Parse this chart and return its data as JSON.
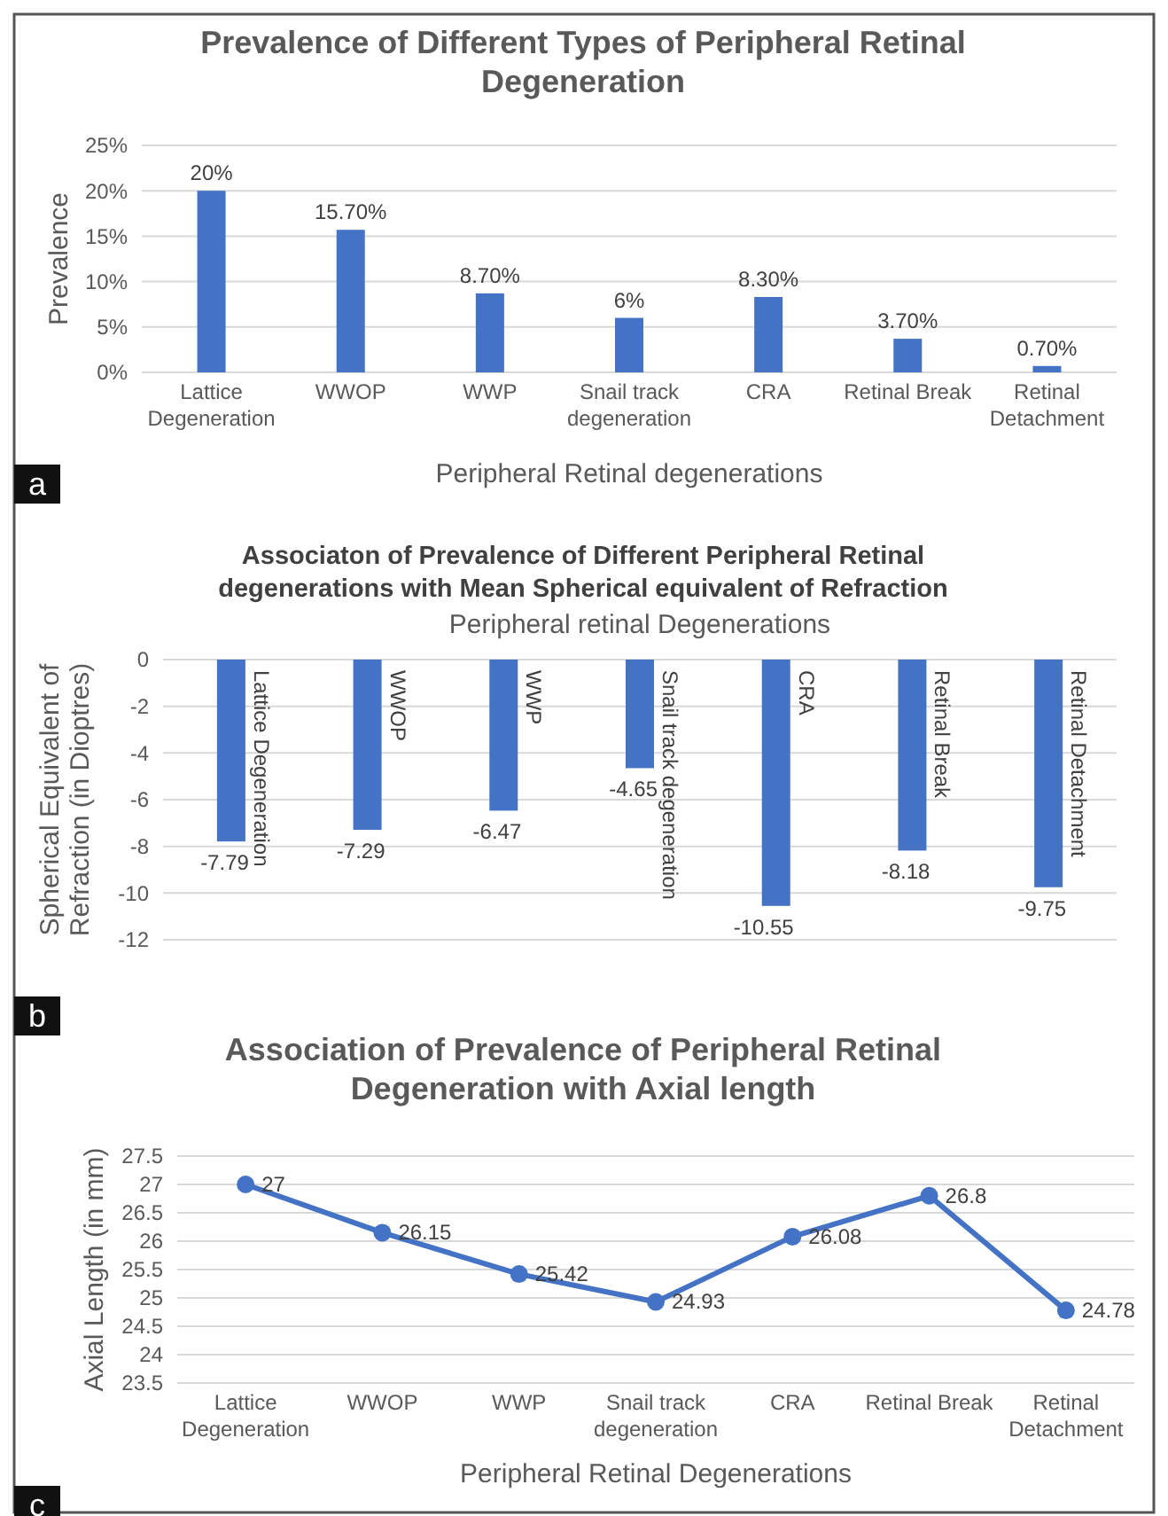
{
  "chart_data": [
    {
      "type": "bar",
      "title": "Prevalence of Different Types of Peripheral Retinal Degeneration",
      "xlabel": "Peripheral Retinal degenerations",
      "ylabel": "Prevalence",
      "categories": [
        "Lattice Degeneration",
        "WWOP",
        "WWP",
        "Snail track degeneration",
        "CRA",
        "Retinal Break",
        "Retinal Detachment"
      ],
      "values": [
        20,
        15.7,
        8.7,
        6,
        8.3,
        3.7,
        0.7
      ],
      "value_labels": [
        "20%",
        "15.70%",
        "8.70%",
        "6%",
        "8.30%",
        "3.70%",
        "0.70%"
      ],
      "color": "#4472c4",
      "ylim": [
        0,
        25
      ],
      "yticks": [
        {
          "value": 0,
          "label": "0%"
        },
        {
          "value": 5,
          "label": "5%"
        },
        {
          "value": 10,
          "label": "10%"
        },
        {
          "value": 15,
          "label": "15%"
        },
        {
          "value": 20,
          "label": "20%"
        },
        {
          "value": 25,
          "label": "25%"
        }
      ],
      "grid": "y",
      "annotations": [
        "a"
      ]
    },
    {
      "type": "bar",
      "title": "Associaton of Prevalence of Different Peripheral Retinal degenerations with Mean Spherical equivalent of Refraction",
      "xlabel": "Peripheral retinal Degenerations",
      "ylabel": "Spherical Equivalent of Refraction (in Dioptres)",
      "categories": [
        "Lattice Degeneration",
        "WWOP",
        "WWP",
        "Snail track degeneration",
        "CRA",
        "Retinal Break",
        "Retinal Detachment"
      ],
      "values": [
        -7.79,
        -7.29,
        -6.47,
        -4.65,
        -10.55,
        -8.18,
        -9.75
      ],
      "data_labels": true,
      "color": "#4472c4",
      "ylim": [
        -12,
        0
      ],
      "yticks": [
        -12,
        -10,
        -8,
        -6,
        -4,
        -2,
        0
      ],
      "grid": "y",
      "annotations": [
        "b"
      ]
    },
    {
      "type": "line",
      "title": "Association of Prevalence of Peripheral Retinal Degeneration with Axial length",
      "xlabel": "Peripheral Retinal Degenerations",
      "ylabel": "Axial Length (in mm)",
      "categories": [
        "Lattice Degeneration",
        "WWOP",
        "WWP",
        "Snail track degeneration",
        "CRA",
        "Retinal Break",
        "Retinal Detachment"
      ],
      "values": [
        27,
        26.15,
        25.42,
        24.93,
        26.08,
        26.8,
        24.78
      ],
      "data_labels": true,
      "color": "#4472c4",
      "marker": "circle",
      "line_style": "solid",
      "ylim": [
        23.5,
        27.5
      ],
      "yticks": [
        23.5,
        24,
        24.5,
        25,
        25.5,
        26,
        26.5,
        27,
        27.5
      ],
      "grid": "y",
      "annotations": [
        "c"
      ]
    }
  ]
}
